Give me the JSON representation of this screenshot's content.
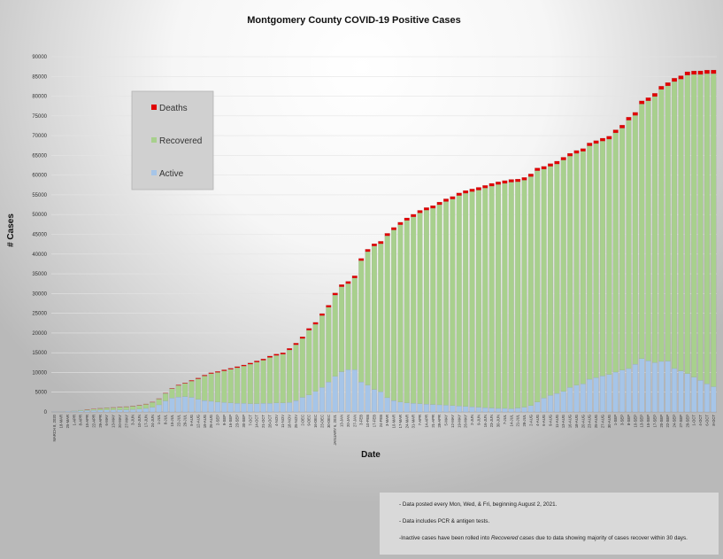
{
  "chart_data": {
    "type": "bar",
    "stacked": true,
    "title": "Montgomery County COVID-19 Positive Cases",
    "xlabel": "Date",
    "ylabel": "# Cases",
    "ylim": [
      0,
      90000
    ],
    "yticks": [
      0,
      5000,
      10000,
      15000,
      20000,
      25000,
      30000,
      35000,
      40000,
      45000,
      50000,
      55000,
      60000,
      65000,
      70000,
      75000,
      80000,
      85000,
      90000
    ],
    "grid": "horizontal",
    "legend_position": "upper-left (inside plot)",
    "colors": {
      "Active": "#a6c5e8",
      "Recovered": "#a8d08d",
      "Deaths": "#e00000"
    },
    "legend": [
      "Deaths",
      "Recovered",
      "Active"
    ],
    "categories": [
      "MARCH 8, 2020",
      "18-MAR",
      "25-MAR",
      "1-APR",
      "8-APR",
      "15-APR",
      "22-APR",
      "29-APR",
      "6-MAY",
      "13-MAY",
      "20-MAY",
      "27-MAY",
      "3-JUN",
      "10-JUN",
      "17-JUN",
      "24-JUN",
      "1-JUL",
      "8-JUL",
      "15-JUL",
      "22-JUL",
      "29-JUL",
      "5-AUG",
      "12-AUG",
      "19-AUG",
      "26-AUG",
      "2-SEP",
      "9-SEP",
      "16-SEP",
      "23-SEP",
      "30-SEP",
      "7-OCT",
      "14-OCT",
      "21-OCT",
      "28-OCT",
      "4-NOV",
      "11-NOV",
      "18-NOV",
      "25-NOV",
      "2-DEC",
      "9-DEC",
      "16-DEC",
      "23-DEC",
      "30-DEC",
      "JANUARY 6, 2021",
      "13-JAN",
      "20-JAN",
      "27-JAN",
      "3-FEB",
      "10-FEB",
      "17-FEB",
      "24-FEB",
      "3-MAR",
      "10-MAR",
      "17-MAR",
      "24-MAR",
      "31-MAR",
      "7-APR",
      "14-APR",
      "21-APR",
      "28-APR",
      "5-MAY",
      "12-MAY",
      "19-MAY",
      "26-MAY",
      "2-JUN",
      "9-JUN",
      "16-JUN",
      "23-JUN",
      "30-JUN",
      "7-JUL",
      "14-JUL",
      "21-JUL",
      "28-JUL",
      "2-AUG",
      "4-AUG",
      "6-AUG",
      "9-AUG",
      "11-AUG",
      "13-AUG",
      "16-AUG",
      "18-AUG",
      "20-AUG",
      "23-AUG",
      "25-AUG",
      "27-AUG",
      "30-AUG",
      "1-SEP",
      "3-SEP",
      "8-SEP",
      "10-SEP",
      "13-SEP",
      "15-SEP",
      "17-SEP",
      "20-SEP",
      "22-SEP",
      "24-SEP",
      "27-SEP",
      "29-SEP",
      "1-OCT",
      "4-OCT",
      "6-OCT",
      "8-OCT"
    ],
    "series": [
      {
        "name": "Active",
        "values": [
          50,
          60,
          150,
          200,
          300,
          350,
          400,
          450,
          500,
          500,
          550,
          550,
          600,
          700,
          900,
          1200,
          1800,
          2800,
          3500,
          3800,
          3900,
          3700,
          3200,
          2900,
          2700,
          2500,
          2400,
          2300,
          2200,
          2200,
          2100,
          2100,
          2200,
          2200,
          2300,
          2300,
          2400,
          2900,
          3700,
          4300,
          5200,
          6200,
          7600,
          9000,
          10200,
          10700,
          10700,
          7600,
          6800,
          5700,
          5100,
          3600,
          2900,
          2500,
          2300,
          2200,
          2100,
          2000,
          1900,
          1800,
          1700,
          1600,
          1500,
          1400,
          1300,
          1200,
          1100,
          1000,
          900,
          900,
          800,
          1000,
          1200,
          1600,
          2500,
          3500,
          4200,
          4700,
          5200,
          6200,
          6800,
          7100,
          8300,
          8700,
          9100,
          9500,
          10100,
          10600,
          11000,
          12100,
          13500,
          13000,
          12500,
          12800,
          12900,
          11000,
          10400,
          9700,
          8800,
          8000,
          7100,
          6400
        ]
      },
      {
        "name": "Recovered",
        "values": [
          0,
          0,
          0,
          50,
          150,
          250,
          350,
          450,
          550,
          600,
          650,
          750,
          850,
          950,
          1050,
          1250,
          1500,
          1900,
          2400,
          2900,
          3300,
          4100,
          5200,
          6200,
          7000,
          7500,
          8000,
          8500,
          9000,
          9400,
          10000,
          10500,
          10900,
          11600,
          12000,
          12300,
          13300,
          14100,
          14900,
          16400,
          17000,
          18200,
          18900,
          20600,
          21500,
          21800,
          23200,
          30700,
          33800,
          36300,
          37500,
          41000,
          43200,
          44900,
          46200,
          47200,
          48300,
          49100,
          49700,
          50700,
          51600,
          52300,
          53300,
          54000,
          54500,
          55000,
          55600,
          56200,
          56700,
          57000,
          57400,
          57300,
          57500,
          58000,
          58600,
          58000,
          58000,
          58100,
          58600,
          58600,
          58700,
          58900,
          59100,
          59300,
          59500,
          59600,
          60600,
          61300,
          62900,
          63000,
          64500,
          65800,
          67400,
          68900,
          69700,
          72700,
          73900,
          75600,
          76700,
          77500,
          78600,
          79300
        ]
      },
      {
        "name": "Deaths",
        "values": [
          0,
          0,
          0,
          0,
          0,
          10,
          20,
          30,
          40,
          50,
          60,
          60,
          70,
          80,
          80,
          80,
          90,
          100,
          120,
          150,
          170,
          190,
          210,
          230,
          250,
          260,
          270,
          280,
          290,
          300,
          310,
          330,
          340,
          360,
          380,
          400,
          420,
          440,
          460,
          480,
          500,
          520,
          540,
          560,
          580,
          590,
          600,
          610,
          620,
          630,
          640,
          650,
          650,
          660,
          660,
          670,
          670,
          680,
          680,
          680,
          690,
          690,
          690,
          700,
          700,
          700,
          700,
          710,
          710,
          710,
          710,
          710,
          720,
          720,
          720,
          720,
          730,
          730,
          730,
          730,
          740,
          740,
          750,
          750,
          760,
          770,
          780,
          790,
          800,
          810,
          820,
          830,
          840,
          850,
          860,
          870,
          880,
          890,
          900,
          910,
          920,
          930
        ]
      }
    ]
  },
  "notes": [
    "- Data posted every Mon, Wed, & Fri, beginning August 2, 2021.",
    "- Data includes PCR & antigen tests.",
    {
      "prefix": "-Inactive cases have been rolled into ",
      "emph": "Recovered cases",
      "suffix": "  due to data showing majority of cases recover within 30 days."
    }
  ]
}
